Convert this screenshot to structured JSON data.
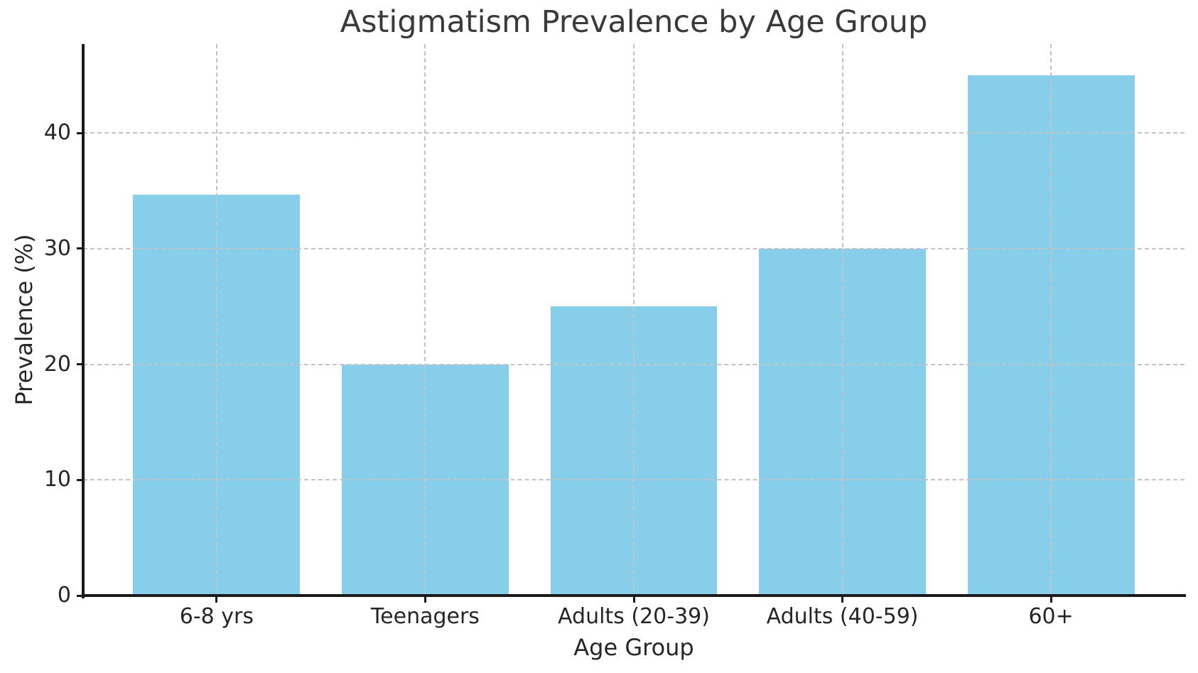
{
  "chart_data": {
    "type": "bar",
    "title": "Astigmatism Prevalence by Age Group",
    "xlabel": "Age Group",
    "ylabel": "Prevalence (%)",
    "categories": [
      "6-8 yrs",
      "Teenagers",
      "Adults (20-39)",
      "Adults (40-59)",
      "60+"
    ],
    "values": [
      34.7,
      20,
      25,
      30,
      45
    ],
    "yticks": [
      0,
      10,
      20,
      30,
      40
    ],
    "ylim": [
      0,
      47.7
    ],
    "bar_color": "#87CEEB",
    "grid": true,
    "grid_style": "dashed",
    "grid_color": "#c4c4c4",
    "grid_above_bars": true,
    "spine_color": "#1a1a1a",
    "text_color": "#262626",
    "title_color": "#3a3a3a",
    "background": "#ffffff",
    "legend": "none",
    "bar_width_fraction": 0.8
  }
}
